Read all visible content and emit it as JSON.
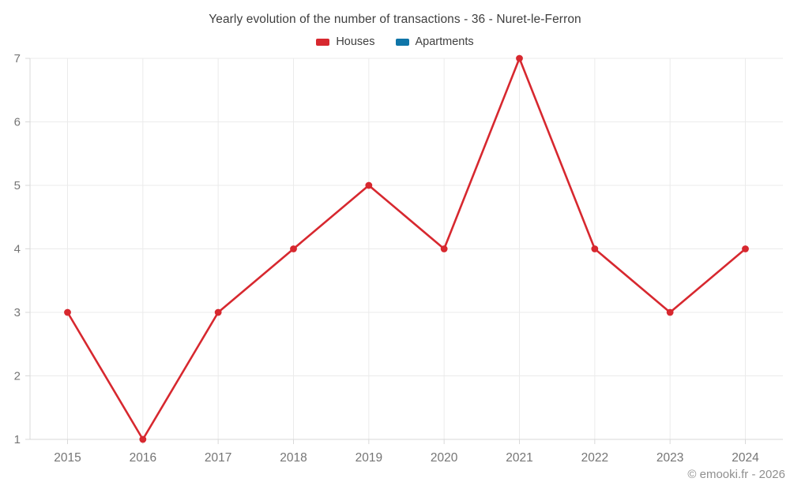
{
  "header": {
    "title": "Yearly evolution of the number of transactions - 36 - Nuret-le-Ferron"
  },
  "legend": [
    {
      "label": "Houses",
      "color": "#d7282f"
    },
    {
      "label": "Apartments",
      "color": "#0f75a8"
    }
  ],
  "watermark": "© emooki.fr - 2026",
  "colors": {
    "houses": "#d7282f",
    "apartments": "#0f75a8",
    "gridline": "#ebebeb",
    "axis": "#d9d9d9",
    "tick_label": "#757575",
    "title_text": "#3f3f3f",
    "watermark_text": "#8f8f8f",
    "background": "#ffffff"
  },
  "chart_data": {
    "type": "line",
    "title": "Yearly evolution of the number of transactions - 36 - Nuret-le-Ferron",
    "x": [
      2015,
      2016,
      2017,
      2018,
      2019,
      2020,
      2021,
      2022,
      2023,
      2024
    ],
    "series": [
      {
        "name": "Houses",
        "color": "#d7282f",
        "values": [
          3,
          1,
          3,
          4,
          5,
          4,
          7,
          4,
          3,
          4
        ]
      },
      {
        "name": "Apartments",
        "color": "#0f75a8",
        "values": []
      }
    ],
    "xlabel": "",
    "ylabel": "",
    "ylim": [
      1,
      7
    ],
    "yticks": [
      1,
      2,
      3,
      4,
      5,
      6,
      7
    ],
    "grid": true,
    "legend_position": "top",
    "marker": "circle"
  }
}
